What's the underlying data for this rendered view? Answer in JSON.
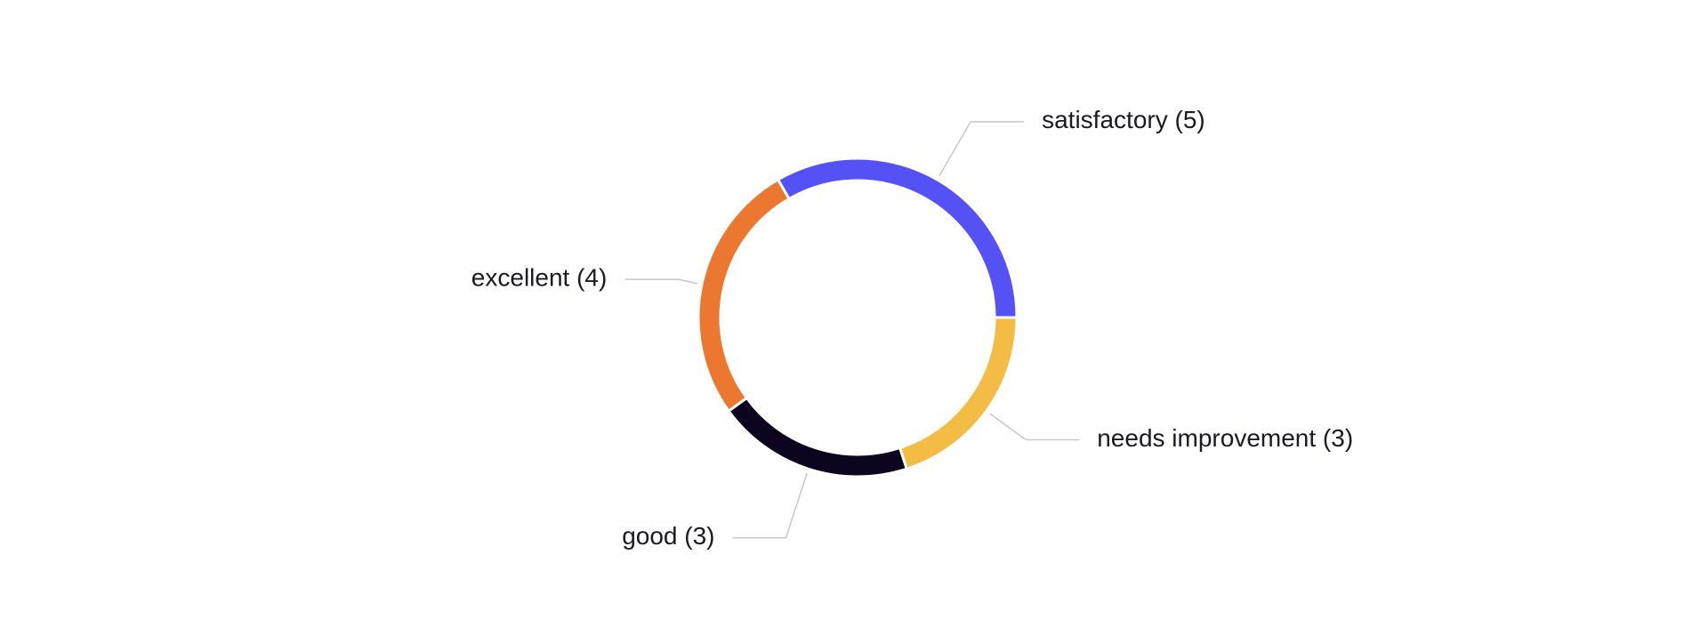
{
  "chart_data": {
    "type": "pie",
    "values": [
      5,
      4,
      3,
      3
    ],
    "value_labels": [
      "satisfactory (5)",
      "excellent (4)",
      "good (3)",
      "needs improvement (3)"
    ],
    "colors": [
      "#5552f5",
      "#ec7730",
      "#0d0520",
      "#f2bc45"
    ]
  }
}
